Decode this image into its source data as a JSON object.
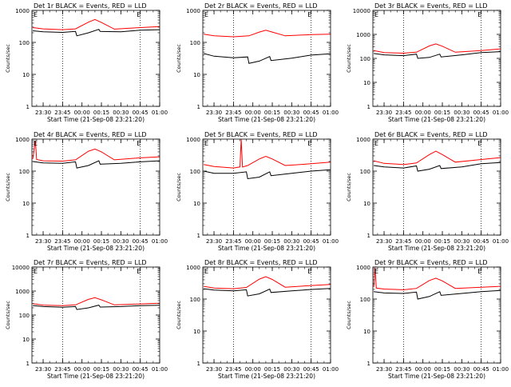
{
  "colors": {
    "events": "#000000",
    "lld": "#ff0000",
    "axis": "#000000",
    "background": "#ffffff"
  },
  "xlabel": "Start Time (21-Sep-08 23:21:20)",
  "ylabel": "Counts/sec",
  "x_tick_labels": [
    "23:30",
    "23:45",
    "00:00",
    "00:15",
    "00:30",
    "00:45",
    "01:00"
  ],
  "y_tick_labels": [
    "1",
    "10",
    "100",
    "1000",
    "10000"
  ],
  "corner_mark": "E",
  "chart_data": [
    {
      "type": "line",
      "title": "Det 1r BLACK = Events, RED = LLD",
      "xlabel": "Start Time (21-Sep-08 23:21:20)",
      "ylabel": "Counts/sec",
      "yscale": "log",
      "ylim": [
        1,
        1000
      ],
      "xlim": [
        "23:21:20",
        "01:00:00"
      ],
      "series": [
        {
          "name": "Events",
          "points": [
            [
              "23:22",
              230
            ],
            [
              "23:30",
              215
            ],
            [
              "23:45",
              205
            ],
            [
              "23:55",
              220
            ],
            [
              "23:56",
              160
            ],
            [
              "00:05",
              200
            ],
            [
              "00:13",
              255
            ],
            [
              "00:14",
              220
            ],
            [
              "00:30",
              215
            ],
            [
              "00:45",
              240
            ],
            [
              "01:00",
              250
            ]
          ]
        },
        {
          "name": "LLD",
          "points": [
            [
              "23:22",
              290
            ],
            [
              "23:30",
              265
            ],
            [
              "23:45",
              250
            ],
            [
              "23:55",
              265
            ],
            [
              "00:05",
              430
            ],
            [
              "00:10",
              520
            ],
            [
              "00:15",
              420
            ],
            [
              "00:25",
              260
            ],
            [
              "00:45",
              290
            ],
            [
              "01:00",
              310
            ]
          ]
        }
      ]
    },
    {
      "type": "line",
      "title": "Det 2r BLACK = Events, RED = LLD",
      "xlabel": "Start Time (21-Sep-08 23:21:20)",
      "ylabel": "Counts/sec",
      "yscale": "log",
      "ylim": [
        1,
        1000
      ],
      "xlim": [
        "23:21:20",
        "01:00:00"
      ],
      "series": [
        {
          "name": "Events",
          "points": [
            [
              "23:22",
              45
            ],
            [
              "23:30",
              37
            ],
            [
              "23:45",
              33
            ],
            [
              "23:56",
              35
            ],
            [
              "23:57",
              22
            ],
            [
              "00:05",
              26
            ],
            [
              "00:13",
              36
            ],
            [
              "00:14",
              27
            ],
            [
              "00:30",
              32
            ],
            [
              "00:45",
              40
            ],
            [
              "01:00",
              44
            ]
          ]
        },
        {
          "name": "LLD",
          "points": [
            [
              "23:22",
              180
            ],
            [
              "23:30",
              160
            ],
            [
              "23:45",
              150
            ],
            [
              "23:57",
              160
            ],
            [
              "00:05",
              210
            ],
            [
              "00:10",
              240
            ],
            [
              "00:15",
              210
            ],
            [
              "00:25",
              160
            ],
            [
              "00:45",
              175
            ],
            [
              "01:00",
              180
            ]
          ]
        }
      ]
    },
    {
      "type": "line",
      "title": "Det 3r BLACK = Events, RED = LLD",
      "xlabel": "Start Time (21-Sep-08 23:21:20)",
      "ylabel": "Counts/sec",
      "yscale": "log",
      "ylim": [
        1,
        10000
      ],
      "xlim": [
        "23:21:20",
        "01:00:00"
      ],
      "series": [
        {
          "name": "Events",
          "points": [
            [
              "23:22",
              160
            ],
            [
              "23:30",
              140
            ],
            [
              "23:45",
              130
            ],
            [
              "23:55",
              150
            ],
            [
              "23:56",
              100
            ],
            [
              "00:05",
              110
            ],
            [
              "00:13",
              150
            ],
            [
              "00:14",
              115
            ],
            [
              "00:30",
              140
            ],
            [
              "00:45",
              175
            ],
            [
              "01:00",
              190
            ]
          ]
        },
        {
          "name": "LLD",
          "points": [
            [
              "23:22",
              210
            ],
            [
              "23:30",
              175
            ],
            [
              "23:45",
              165
            ],
            [
              "23:55",
              180
            ],
            [
              "00:05",
              330
            ],
            [
              "00:10",
              400
            ],
            [
              "00:15",
              320
            ],
            [
              "00:25",
              180
            ],
            [
              "00:45",
              210
            ],
            [
              "01:00",
              250
            ]
          ]
        }
      ]
    },
    {
      "type": "line",
      "title": "Det 4r BLACK = Events, RED = LLD",
      "xlabel": "Start Time (21-Sep-08 23:21:20)",
      "ylabel": "Counts/sec",
      "yscale": "log",
      "ylim": [
        1,
        1000
      ],
      "xlim": [
        "23:21:20",
        "01:00:00"
      ],
      "series": [
        {
          "name": "Events",
          "points": [
            [
              "23:22",
              200
            ],
            [
              "23:30",
              180
            ],
            [
              "23:45",
              175
            ],
            [
              "23:55",
              195
            ],
            [
              "23:56",
              125
            ],
            [
              "00:05",
              150
            ],
            [
              "00:13",
              210
            ],
            [
              "00:14",
              165
            ],
            [
              "00:30",
              175
            ],
            [
              "00:45",
              195
            ],
            [
              "01:00",
              210
            ]
          ]
        },
        {
          "name": "LLD",
          "points": [
            [
              "23:22",
              240
            ],
            [
              "23:24",
              900
            ],
            [
              "23:25",
              230
            ],
            [
              "23:30",
              210
            ],
            [
              "23:45",
              205
            ],
            [
              "23:55",
              225
            ],
            [
              "00:05",
              420
            ],
            [
              "00:10",
              490
            ],
            [
              "00:15",
              400
            ],
            [
              "00:25",
              225
            ],
            [
              "00:45",
              260
            ],
            [
              "01:00",
              280
            ]
          ]
        }
      ]
    },
    {
      "type": "line",
      "title": "Det 5r BLACK = Events, RED = LLD",
      "xlabel": "Start Time (21-Sep-08 23:21:20)",
      "ylabel": "Counts/sec",
      "yscale": "log",
      "ylim": [
        1,
        1000
      ],
      "xlim": [
        "23:21:20",
        "01:00:00"
      ],
      "series": [
        {
          "name": "Events",
          "points": [
            [
              "23:22",
              100
            ],
            [
              "23:30",
              85
            ],
            [
              "23:45",
              85
            ],
            [
              "23:55",
              95
            ],
            [
              "23:56",
              58
            ],
            [
              "00:05",
              65
            ],
            [
              "00:13",
              95
            ],
            [
              "00:14",
              72
            ],
            [
              "00:30",
              85
            ],
            [
              "00:45",
              100
            ],
            [
              "01:00",
              110
            ]
          ]
        },
        {
          "name": "LLD",
          "points": [
            [
              "23:22",
              160
            ],
            [
              "23:30",
              140
            ],
            [
              "23:45",
              125
            ],
            [
              "23:50",
              135
            ],
            [
              "23:51",
              1000
            ],
            [
              "23:52",
              135
            ],
            [
              "23:56",
              150
            ],
            [
              "00:05",
              240
            ],
            [
              "00:10",
              290
            ],
            [
              "00:15",
              240
            ],
            [
              "00:25",
              150
            ],
            [
              "00:45",
              170
            ],
            [
              "01:00",
              190
            ]
          ]
        }
      ]
    },
    {
      "type": "line",
      "title": "Det 6r BLACK = Events, RED = LLD",
      "xlabel": "Start Time (21-Sep-08 23:21:20)",
      "ylabel": "Counts/sec",
      "yscale": "log",
      "ylim": [
        1,
        1000
      ],
      "xlim": [
        "23:21:20",
        "01:00:00"
      ],
      "series": [
        {
          "name": "Events",
          "points": [
            [
              "23:22",
              150
            ],
            [
              "23:30",
              135
            ],
            [
              "23:45",
              125
            ],
            [
              "23:55",
              145
            ],
            [
              "23:56",
              100
            ],
            [
              "00:05",
              115
            ],
            [
              "00:13",
              150
            ],
            [
              "00:14",
              120
            ],
            [
              "00:30",
              135
            ],
            [
              "00:45",
              170
            ],
            [
              "01:00",
              185
            ]
          ]
        },
        {
          "name": "LLD",
          "points": [
            [
              "23:22",
              210
            ],
            [
              "23:30",
              175
            ],
            [
              "23:45",
              160
            ],
            [
              "23:55",
              180
            ],
            [
              "00:05",
              330
            ],
            [
              "00:10",
              420
            ],
            [
              "00:15",
              330
            ],
            [
              "00:25",
              190
            ],
            [
              "00:45",
              230
            ],
            [
              "01:00",
              265
            ]
          ]
        }
      ]
    },
    {
      "type": "line",
      "title": "Det 7r BLACK = Events, RED = LLD",
      "xlabel": "Start Time (21-Sep-08 23:21:20)",
      "ylabel": "Counts/sec",
      "yscale": "log",
      "ylim": [
        1,
        10000
      ],
      "xlim": [
        "23:21:20",
        "01:00:00"
      ],
      "series": [
        {
          "name": "Events",
          "points": [
            [
              "23:22",
              250
            ],
            [
              "23:30",
              225
            ],
            [
              "23:45",
              210
            ],
            [
              "23:55",
              225
            ],
            [
              "23:56",
              170
            ],
            [
              "00:05",
              200
            ],
            [
              "00:13",
              260
            ],
            [
              "00:14",
              215
            ],
            [
              "00:30",
              225
            ],
            [
              "00:45",
              245
            ],
            [
              "01:00",
              255
            ]
          ]
        },
        {
          "name": "LLD",
          "points": [
            [
              "23:22",
              300
            ],
            [
              "23:30",
              260
            ],
            [
              "23:45",
              245
            ],
            [
              "23:55",
              265
            ],
            [
              "00:05",
              450
            ],
            [
              "00:10",
              530
            ],
            [
              "00:15",
              430
            ],
            [
              "00:25",
              265
            ],
            [
              "00:45",
              290
            ],
            [
              "01:00",
              310
            ]
          ]
        }
      ]
    },
    {
      "type": "line",
      "title": "Det 8r BLACK = Events, RED = LLD",
      "xlabel": "Start Time (21-Sep-08 23:21:20)",
      "ylabel": "Counts/sec",
      "yscale": "log",
      "ylim": [
        1,
        1000
      ],
      "xlim": [
        "23:21:20",
        "01:00:00"
      ],
      "series": [
        {
          "name": "Events",
          "points": [
            [
              "23:22",
              210
            ],
            [
              "23:30",
              190
            ],
            [
              "23:45",
              180
            ],
            [
              "23:55",
              195
            ],
            [
              "23:56",
              125
            ],
            [
              "00:05",
              145
            ],
            [
              "00:13",
              205
            ],
            [
              "00:14",
              160
            ],
            [
              "00:30",
              180
            ],
            [
              "00:45",
              200
            ],
            [
              "01:00",
              215
            ]
          ]
        },
        {
          "name": "LLD",
          "points": [
            [
              "23:22",
              250
            ],
            [
              "23:30",
              220
            ],
            [
              "23:45",
              210
            ],
            [
              "23:55",
              230
            ],
            [
              "00:05",
              420
            ],
            [
              "00:10",
              500
            ],
            [
              "00:15",
              410
            ],
            [
              "00:25",
              235
            ],
            [
              "00:45",
              265
            ],
            [
              "01:00",
              285
            ]
          ]
        }
      ]
    },
    {
      "type": "line",
      "title": "Det 9r BLACK = Events, RED = LLD",
      "xlabel": "Start Time (21-Sep-08 23:21:20)",
      "ylabel": "Counts/sec",
      "yscale": "log",
      "ylim": [
        1,
        1000
      ],
      "xlim": [
        "23:21:20",
        "01:00:00"
      ],
      "series": [
        {
          "name": "Events",
          "points": [
            [
              "23:22",
              170
            ],
            [
              "23:30",
              155
            ],
            [
              "23:45",
              150
            ],
            [
              "23:55",
              165
            ],
            [
              "23:56",
              100
            ],
            [
              "00:05",
              120
            ],
            [
              "00:13",
              170
            ],
            [
              "00:14",
              130
            ],
            [
              "00:30",
              150
            ],
            [
              "00:45",
              170
            ],
            [
              "01:00",
              185
            ]
          ]
        },
        {
          "name": "LLD",
          "points": [
            [
              "23:22",
              240
            ],
            [
              "23:23",
              950
            ],
            [
              "23:24",
              220
            ],
            [
              "23:30",
              205
            ],
            [
              "23:45",
              195
            ],
            [
              "23:55",
              215
            ],
            [
              "00:05",
              380
            ],
            [
              "00:10",
              450
            ],
            [
              "00:15",
              370
            ],
            [
              "00:25",
              215
            ],
            [
              "00:45",
              235
            ],
            [
              "01:00",
              250
            ]
          ]
        }
      ]
    }
  ]
}
